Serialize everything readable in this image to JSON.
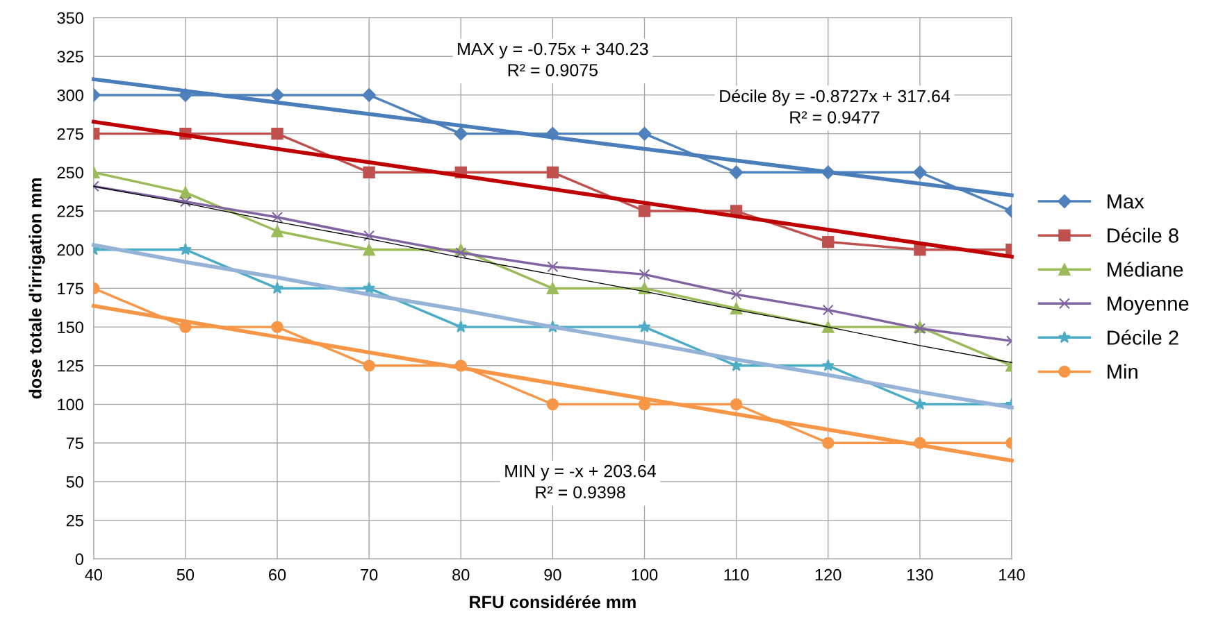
{
  "chart_data": {
    "type": "line",
    "xlabel": "RFU considérée mm",
    "ylabel": "dose totale d'irrigation mm",
    "x": [
      40,
      50,
      60,
      70,
      80,
      90,
      100,
      110,
      120,
      130,
      140
    ],
    "series": [
      {
        "name": "Max",
        "color": "#4f81bd",
        "marker": "diamond",
        "values": [
          300,
          300,
          300,
          300,
          275,
          275,
          275,
          250,
          250,
          250,
          225
        ]
      },
      {
        "name": "Décile 8",
        "color": "#c0504d",
        "marker": "square",
        "values": [
          275,
          275,
          275,
          250,
          250,
          250,
          225,
          225,
          205,
          200,
          200
        ]
      },
      {
        "name": "Médiane",
        "color": "#9bbb59",
        "marker": "triangle",
        "values": [
          250,
          237,
          212,
          200,
          200,
          175,
          175,
          162,
          150,
          150,
          125
        ]
      },
      {
        "name": "Moyenne",
        "color": "#8064a2",
        "marker": "cross",
        "values": [
          241,
          231,
          221,
          209,
          198,
          189,
          184,
          171,
          161,
          149,
          141
        ]
      },
      {
        "name": "Décile 2",
        "color": "#4bacc6",
        "marker": "star",
        "values": [
          200,
          200,
          175,
          175,
          150,
          150,
          150,
          125,
          125,
          100,
          100
        ]
      },
      {
        "name": "Min",
        "color": "#f79646",
        "marker": "circle",
        "values": [
          175,
          150,
          150,
          125,
          125,
          100,
          100,
          100,
          75,
          75,
          75
        ]
      },
      {
        "color": "#4a7ebb",
        "marker": "none",
        "values": [
          310.2,
          302.7,
          295.2,
          287.7,
          280.2,
          272.7,
          265.2,
          257.7,
          250.2,
          242.7,
          235.2
        ]
      },
      {
        "color": "#c00000",
        "marker": "none",
        "values": [
          282.7,
          274.0,
          265.2,
          256.5,
          247.8,
          239.1,
          230.3,
          221.6,
          212.9,
          204.1,
          195.4
        ]
      },
      {
        "color": "#000000",
        "marker": "none",
        "values": [
          241,
          230,
          218,
          207,
          195,
          184,
          173,
          161,
          150,
          138,
          127
        ]
      },
      {
        "color": "#95b3d7",
        "marker": "none",
        "values": [
          203,
          192,
          182,
          171,
          161,
          150,
          140,
          129,
          119,
          108,
          98
        ]
      },
      {
        "color": "#f79646",
        "marker": "none",
        "values": [
          163.6,
          153.6,
          143.6,
          133.6,
          123.6,
          113.6,
          103.6,
          93.6,
          83.6,
          73.6,
          63.6
        ]
      }
    ],
    "annotations": [
      "MAX y = -0.75x + 340.23\nR² = 0.9075",
      "Décile 8y = -0.8727x + 317.64\nR² = 0.9477",
      "MIN y = -x + 203.64\nR² = 0.9398"
    ],
    "xlim": [
      40,
      140
    ],
    "xticks": [
      40,
      50,
      60,
      70,
      80,
      90,
      100,
      110,
      120,
      130,
      140
    ],
    "ylim": [
      0,
      350
    ],
    "yticks": [
      0,
      25,
      50,
      75,
      100,
      125,
      150,
      175,
      200,
      225,
      250,
      275,
      300,
      325,
      350
    ],
    "grid": true,
    "legend": "right"
  }
}
